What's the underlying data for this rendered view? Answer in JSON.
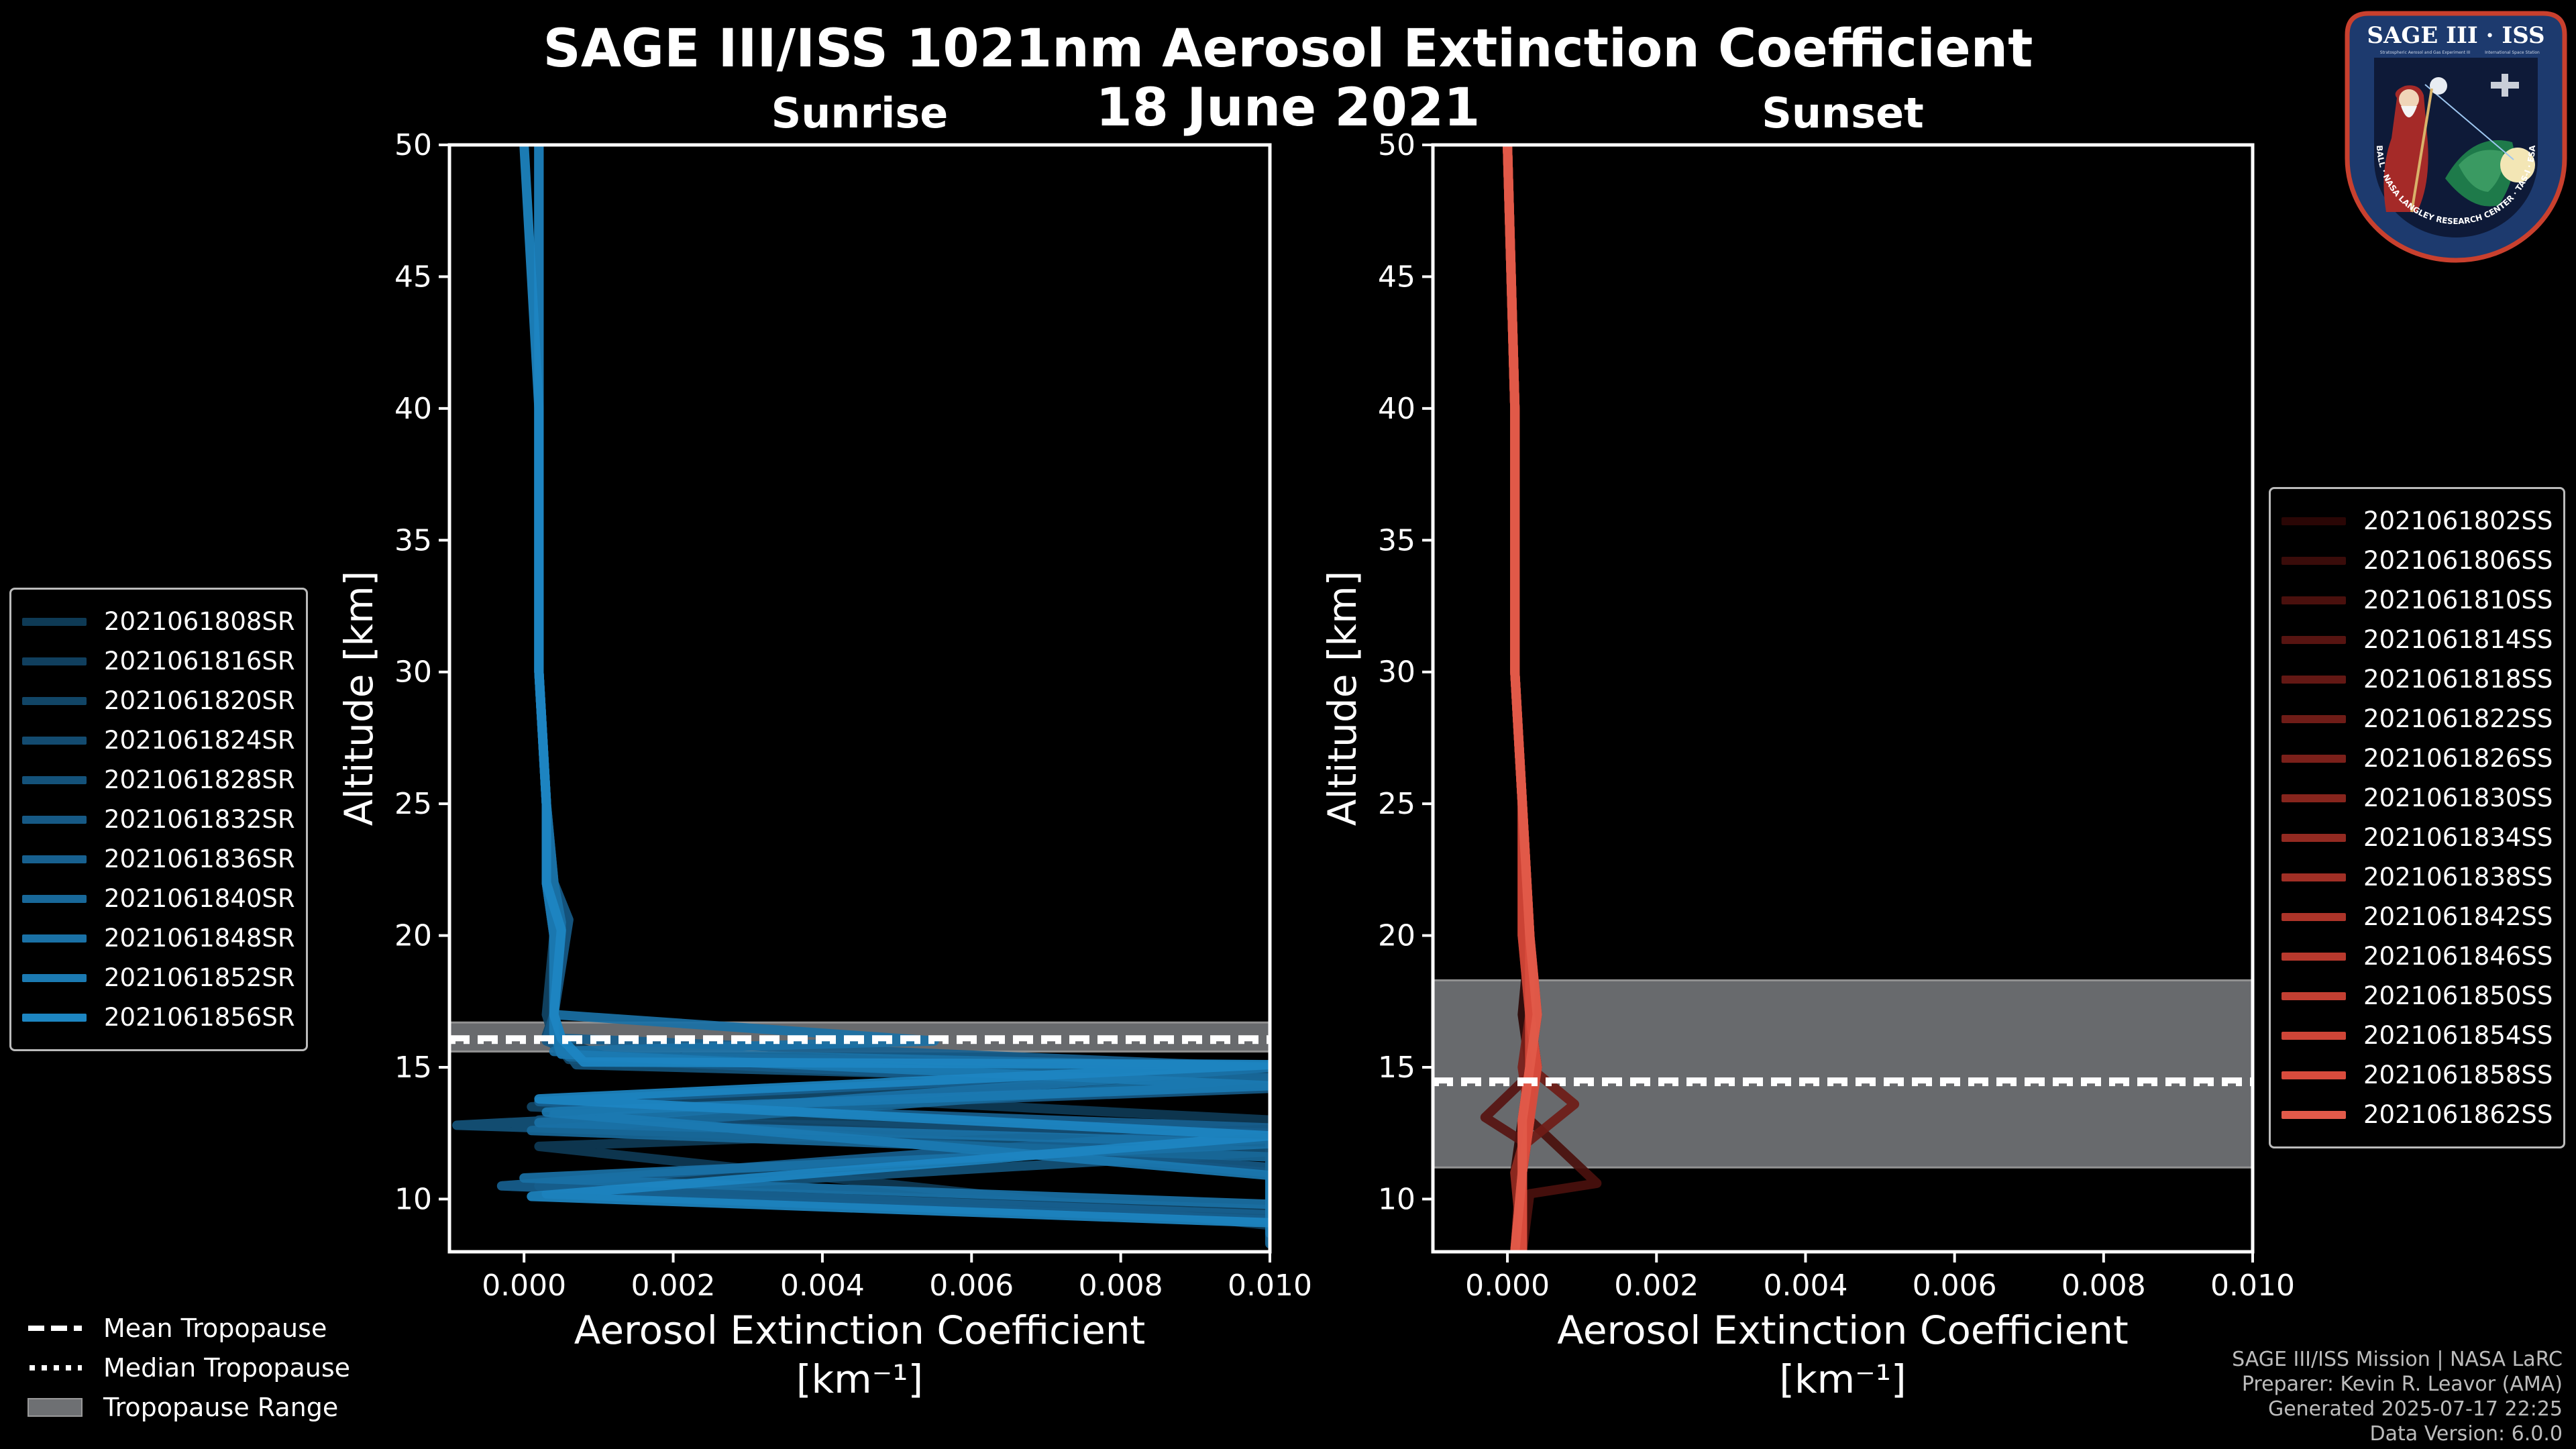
{
  "title_line1": "SAGE III/ISS 1021nm Aerosol Extinction Coefficient",
  "title_line2": "18 June 2021",
  "logo": {
    "name": "SAGE III · ISS",
    "ring_text": "BALL · NASA LANGLEY RESEARCH CENTER · TAS-I · ESA",
    "subtitle1": "Stratospheric Aerosol and Gas Experiment III",
    "subtitle2": "International Space Station"
  },
  "tropopause_legend": {
    "mean": "Mean Tropopause",
    "median": "Median Tropopause",
    "range": "Tropopause Range"
  },
  "footer": {
    "line1": "SAGE III/ISS Mission | NASA LaRC",
    "line2": "Preparer: Kevin R. Leavor (AMA)",
    "line3": "Generated 2025-07-17 22:25",
    "line4": "Data Version: 6.0.0"
  },
  "colors": {
    "sunrise": "#1f8fd0",
    "sunset": "#e25a4a",
    "tropo_range": "#6e7073",
    "background": "#000000"
  },
  "chart_data": [
    {
      "type": "line",
      "title": "Sunrise",
      "xlabel": "Aerosol Extinction Coefficient",
      "xunit": "[km$^{-1}$]",
      "xunit_display": "[km⁻¹]",
      "ylabel": "Altitude [km]",
      "xlim": [
        -0.001,
        0.01
      ],
      "ylim": [
        8,
        50
      ],
      "xticks": [
        "0.000",
        "0.002",
        "0.004",
        "0.006",
        "0.008",
        "0.010"
      ],
      "xtick_values": [
        0,
        0.002,
        0.004,
        0.006,
        0.008,
        0.01
      ],
      "yticks": [
        10,
        15,
        20,
        25,
        30,
        35,
        40,
        45,
        50
      ],
      "tropopause": {
        "mean": 16.1,
        "median": 16.0,
        "range": [
          15.6,
          16.7
        ]
      },
      "series_colors": [
        "#0e3a55",
        "#103f5e",
        "#114566",
        "#134b70",
        "#14527a",
        "#165985",
        "#17608f",
        "#186899",
        "#1a71a6",
        "#1b7ab2",
        "#1d86c2"
      ],
      "series": [
        {
          "name": "2021061808SR",
          "x": [
            0.0002,
            0.0002,
            0.0002,
            0.0003,
            0.0003,
            0.0004,
            0.0004,
            0.0003,
            0.0011,
            0.01,
            0.003,
            0.01,
            0.0002,
            0.01
          ],
          "y": [
            50,
            40,
            30,
            25,
            22,
            20,
            17,
            16.2,
            15.4,
            15.1,
            14.0,
            13.0,
            12.0,
            9.0
          ]
        },
        {
          "name": "2021061816SR",
          "x": [
            0.0002,
            0.0002,
            0.0002,
            0.0003,
            0.0004,
            0.0005,
            0.0004,
            0.0004,
            0.0008,
            0.01,
            0.0004,
            0.01,
            0.01
          ],
          "y": [
            50,
            40,
            30,
            25,
            22,
            20.4,
            17,
            16.0,
            15.2,
            14.8,
            13.4,
            11.0,
            8.6
          ]
        },
        {
          "name": "2021061820SR",
          "x": [
            0.0002,
            0.0002,
            0.0002,
            0.0003,
            0.0003,
            0.0004,
            0.0003,
            0.0004,
            0.0006,
            0.01,
            0.0001,
            0.01,
            0.0002,
            0.01
          ],
          "y": [
            50,
            40,
            30,
            25,
            22,
            20,
            17,
            16.1,
            15.3,
            14.9,
            13.5,
            12.3,
            10.5,
            9.6
          ]
        },
        {
          "name": "2021061824SR",
          "x": [
            0.0002,
            0.0002,
            0.0002,
            0.0003,
            0.0003,
            0.0005,
            0.0004,
            0.0003,
            0.0005,
            0.01,
            0.0002,
            0.01,
            0.01
          ],
          "y": [
            50,
            40,
            30,
            25,
            22,
            20.2,
            17,
            16.2,
            15.5,
            14.5,
            13.0,
            12.5,
            8.4
          ]
        },
        {
          "name": "2021061828SR",
          "x": [
            0.0002,
            0.0002,
            0.0002,
            0.0003,
            0.0003,
            0.0004,
            0.0004,
            0.0004,
            0.0007,
            0.01,
            -0.0009,
            0.01,
            0.0003,
            0.01
          ],
          "y": [
            50,
            40,
            30,
            25,
            22,
            20,
            17,
            16.3,
            15.1,
            14.4,
            12.8,
            11.8,
            10.2,
            9.2
          ]
        },
        {
          "name": "2021061832SR",
          "x": [
            0.0002,
            0.0002,
            0.0002,
            0.0003,
            0.0004,
            0.0006,
            0.0004,
            0.0003,
            0.0009,
            0.01,
            0.0004,
            0.01,
            0.01
          ],
          "y": [
            50,
            40,
            30,
            25,
            22,
            20.6,
            17,
            16.0,
            15.3,
            14.2,
            13.2,
            11.2,
            8.8
          ]
        },
        {
          "name": "2021061836SR",
          "x": [
            0.0002,
            0.0002,
            0.0002,
            0.0003,
            0.0003,
            0.0004,
            0.0004,
            0.0005,
            0.01,
            0.0002,
            0.01,
            -0.0003,
            0.01
          ],
          "y": [
            50,
            40,
            30,
            25,
            22,
            20,
            17,
            16.1,
            15.0,
            13.7,
            12.7,
            10.5,
            9.4
          ]
        },
        {
          "name": "2021061840SR",
          "x": [
            0.0002,
            0.0002,
            0.0002,
            0.0003,
            0.0003,
            0.0005,
            0.0004,
            0.0004,
            0.0006,
            0.01,
            0.0001,
            0.01,
            0.01
          ],
          "y": [
            50,
            40,
            30,
            25,
            22,
            20.3,
            17,
            16.2,
            15.4,
            14.6,
            12.6,
            11.6,
            8.3
          ]
        },
        {
          "name": "2021061848SR",
          "x": [
            0.0002,
            0.0002,
            0.0002,
            0.0003,
            0.0004,
            0.0005,
            0.0004,
            0.0055,
            0.0004,
            0.01,
            0.0002,
            0.01,
            0.0,
            0.01
          ],
          "y": [
            50,
            40,
            30,
            25,
            22,
            20.5,
            17,
            16.0,
            15.6,
            15.0,
            12.9,
            12.1,
            10.8,
            9.8
          ]
        },
        {
          "name": "2021061852SR",
          "x": [
            0.0002,
            0.0002,
            0.0002,
            0.0003,
            0.0003,
            0.0004,
            0.0004,
            0.0004,
            0.0005,
            0.01,
            0.0003,
            0.01,
            0.01
          ],
          "y": [
            50,
            40,
            30,
            25,
            22,
            20.1,
            17,
            16.3,
            15.5,
            14.3,
            13.3,
            10.9,
            8.7
          ]
        },
        {
          "name": "2021061856SR",
          "x": [
            0.0,
            0.0002,
            0.0002,
            0.0003,
            0.0003,
            0.0005,
            0.0004,
            0.0005,
            0.0008,
            0.01,
            0.0002,
            0.01,
            0.0001,
            0.01
          ],
          "y": [
            50,
            40,
            30,
            25,
            22,
            20.2,
            17,
            16.1,
            15.2,
            15.1,
            13.8,
            12.4,
            10.1,
            9.1
          ]
        }
      ]
    },
    {
      "type": "line",
      "title": "Sunset",
      "xlabel": "Aerosol Extinction Coefficient",
      "xunit": "[km$^{-1}$]",
      "xunit_display": "[km⁻¹]",
      "ylabel": "Altitude [km]",
      "xlim": [
        -0.001,
        0.01
      ],
      "ylim": [
        8,
        50
      ],
      "xticks": [
        "0.000",
        "0.002",
        "0.004",
        "0.006",
        "0.008",
        "0.010"
      ],
      "xtick_values": [
        0,
        0.002,
        0.004,
        0.006,
        0.008,
        0.01
      ],
      "yticks": [
        10,
        15,
        20,
        25,
        30,
        35,
        40,
        45,
        50
      ],
      "tropopause": {
        "mean": 14.5,
        "median": 14.4,
        "range": [
          11.2,
          18.3
        ]
      },
      "series_colors": [
        "#2a0605",
        "#3a0c0a",
        "#4a100d",
        "#571411",
        "#631814",
        "#6f1c17",
        "#7b201a",
        "#87251d",
        "#932a21",
        "#a02f25",
        "#ac3429",
        "#b8392d",
        "#c33f32",
        "#cf4537",
        "#d94c3d",
        "#e25a4a"
      ],
      "series": [
        {
          "name": "2021061802SS",
          "x": [
            0.0,
            0.0001,
            0.0001,
            0.0002,
            0.0003,
            0.0002,
            0.0003,
            0.0002,
            0.0001,
            0.0002
          ],
          "y": [
            50,
            40,
            30,
            25,
            20,
            17,
            15,
            13,
            11,
            8
          ]
        },
        {
          "name": "2021061806SS",
          "x": [
            0.0,
            0.0001,
            0.0001,
            0.0002,
            0.0003,
            0.0003,
            0.0004,
            0.0002,
            0.0002,
            0.0002
          ],
          "y": [
            50,
            40,
            30,
            25,
            20,
            17,
            15,
            13,
            11,
            8
          ]
        },
        {
          "name": "2021061810SS",
          "x": [
            0.0,
            0.0001,
            0.0001,
            0.0002,
            0.0002,
            0.0003,
            0.0003,
            0.0003,
            0.0012,
            0.0003,
            0.0002
          ],
          "y": [
            50,
            40,
            30,
            25,
            20,
            17,
            15,
            13,
            10.6,
            10.2,
            8
          ]
        },
        {
          "name": "2021061814SS",
          "x": [
            0.0,
            0.0001,
            0.0001,
            0.0002,
            0.0003,
            0.0003,
            0.0004,
            -0.0003,
            0.0002,
            0.0002
          ],
          "y": [
            50,
            40,
            30,
            25,
            20,
            17,
            15,
            13.1,
            12.2,
            8
          ]
        },
        {
          "name": "2021061818SS",
          "x": [
            0.0,
            0.0001,
            0.0001,
            0.0002,
            0.0003,
            0.0004,
            0.0003,
            0.0003,
            0.0002,
            0.0002
          ],
          "y": [
            50,
            40,
            30,
            25,
            20,
            17,
            15,
            13,
            11,
            8
          ]
        },
        {
          "name": "2021061822SS",
          "x": [
            0.0,
            0.0001,
            0.0001,
            0.0002,
            0.0003,
            0.0003,
            0.0003,
            0.0009,
            0.0002,
            0.0001
          ],
          "y": [
            50,
            40,
            30,
            25,
            20,
            17,
            15,
            13.6,
            12,
            8
          ]
        },
        {
          "name": "2021061826SS",
          "x": [
            0.0,
            0.0001,
            0.0001,
            0.0002,
            0.0002,
            0.0003,
            0.0002,
            0.0003,
            0.0002,
            0.0002
          ],
          "y": [
            50,
            40,
            30,
            25,
            20,
            17,
            15,
            13,
            11,
            8
          ]
        },
        {
          "name": "2021061830SS",
          "x": [
            0.0,
            0.0001,
            0.0001,
            0.0002,
            0.0003,
            0.0003,
            0.0004,
            0.0002,
            0.0002,
            0.0002
          ],
          "y": [
            50,
            40,
            30,
            25,
            20,
            17,
            15,
            13,
            11,
            8
          ]
        },
        {
          "name": "2021061834SS",
          "x": [
            0.0,
            0.0001,
            0.0001,
            0.0002,
            0.0003,
            0.0003,
            0.0003,
            0.0003,
            0.0001,
            0.0002
          ],
          "y": [
            50,
            40,
            30,
            25,
            20,
            17,
            15,
            13,
            11,
            8
          ]
        },
        {
          "name": "2021061838SS",
          "x": [
            0.0,
            0.0001,
            0.0001,
            0.0002,
            0.0002,
            0.0004,
            0.0003,
            0.0002,
            0.0002,
            0.0001
          ],
          "y": [
            50,
            40,
            30,
            25,
            20,
            17,
            15,
            13,
            11,
            8
          ]
        },
        {
          "name": "2021061842SS",
          "x": [
            0.0,
            0.0001,
            0.0001,
            0.0002,
            0.0003,
            0.0003,
            0.0003,
            0.0003,
            0.0002,
            0.0002
          ],
          "y": [
            50,
            40,
            30,
            25,
            20,
            17,
            15,
            13,
            11,
            8
          ]
        },
        {
          "name": "2021061846SS",
          "x": [
            0.0,
            0.0001,
            0.0001,
            0.0002,
            0.0003,
            0.0003,
            0.0004,
            0.0002,
            0.0002,
            0.0002
          ],
          "y": [
            50,
            40,
            30,
            25,
            20,
            17,
            15,
            13,
            11,
            8
          ]
        },
        {
          "name": "2021061850SS",
          "x": [
            0.0,
            0.0001,
            0.0001,
            0.0002,
            0.0003,
            0.0004,
            0.0003,
            0.0003,
            0.0002,
            0.0001
          ],
          "y": [
            50,
            40,
            30,
            25,
            20,
            17,
            15,
            13,
            11,
            8
          ]
        },
        {
          "name": "2021061854SS",
          "x": [
            0.0,
            0.0001,
            0.0001,
            0.0002,
            0.0002,
            0.0003,
            0.0003,
            0.0002,
            0.0002,
            0.0002
          ],
          "y": [
            50,
            40,
            30,
            25,
            20,
            17,
            15,
            13,
            11,
            8
          ]
        },
        {
          "name": "2021061858SS",
          "x": [
            0.0,
            0.0001,
            0.0001,
            0.0002,
            0.0003,
            0.0003,
            0.0004,
            0.0003,
            0.0002,
            0.0002
          ],
          "y": [
            50,
            40,
            30,
            25,
            20,
            17,
            15,
            13,
            11,
            8
          ]
        },
        {
          "name": "2021061862SS",
          "x": [
            0.0,
            0.0001,
            0.0001,
            0.0002,
            0.0003,
            0.0004,
            0.0003,
            0.0002,
            0.0002,
            0.0001
          ],
          "y": [
            50,
            40,
            30,
            25,
            20,
            17,
            15,
            13,
            11,
            8
          ]
        }
      ]
    }
  ]
}
